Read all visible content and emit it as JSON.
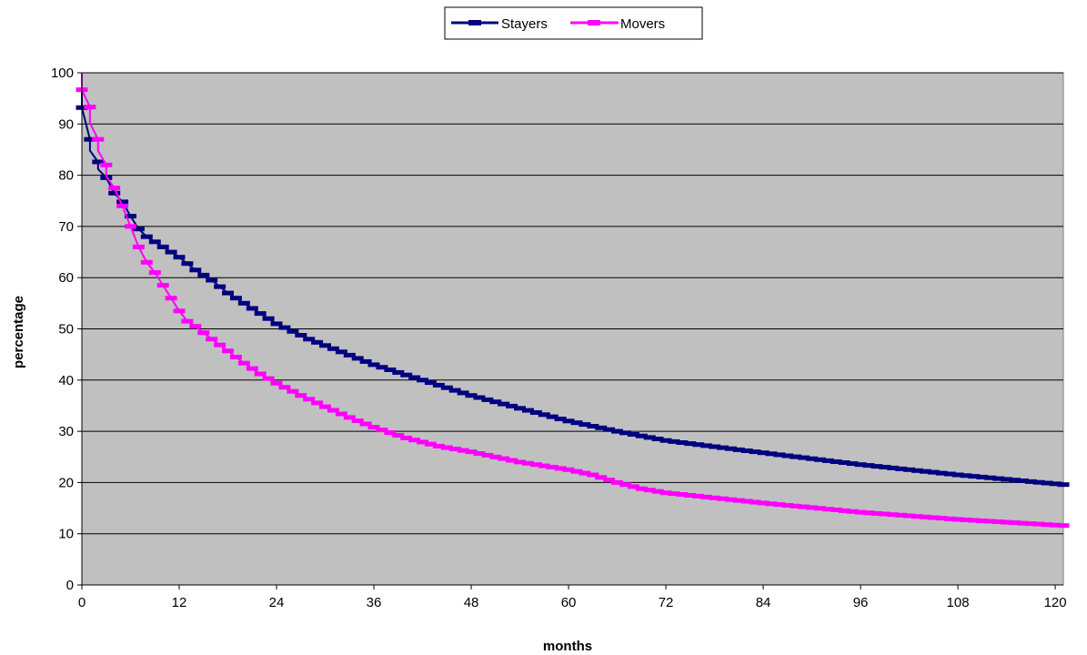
{
  "chart_data": {
    "type": "line",
    "title": "",
    "xlabel": "months",
    "ylabel": "percentage",
    "xlim": [
      0,
      121
    ],
    "ylim": [
      0,
      100
    ],
    "x_ticks": [
      "0",
      "12",
      "24",
      "36",
      "48",
      "60",
      "72",
      "84",
      "96",
      "108",
      "120"
    ],
    "y_ticks": [
      "0",
      "10",
      "20",
      "30",
      "40",
      "50",
      "60",
      "70",
      "80",
      "90",
      "100"
    ],
    "grid": "horizontal",
    "plot_background": "#C0C0C0",
    "legend_position": "top-center",
    "step_markers": true,
    "series": [
      {
        "name": "Stayers",
        "color": "#000080",
        "points": [
          [
            0,
            100
          ],
          [
            0,
            93.2
          ],
          [
            1,
            87
          ],
          [
            1,
            84.8
          ],
          [
            2,
            82.6
          ],
          [
            2,
            81.2
          ],
          [
            3,
            79.5
          ],
          [
            4,
            76.5
          ],
          [
            5,
            74.8
          ],
          [
            6,
            72
          ],
          [
            7,
            69.5
          ],
          [
            8,
            68
          ],
          [
            10,
            66
          ],
          [
            12,
            64
          ],
          [
            14,
            61.5
          ],
          [
            16,
            59.5
          ],
          [
            18,
            57
          ],
          [
            20,
            55
          ],
          [
            22,
            53
          ],
          [
            24,
            51
          ],
          [
            28,
            48
          ],
          [
            32,
            45.5
          ],
          [
            36,
            43
          ],
          [
            42,
            40
          ],
          [
            48,
            37
          ],
          [
            54,
            34.5
          ],
          [
            60,
            32
          ],
          [
            66,
            30
          ],
          [
            72,
            28.2
          ],
          [
            84,
            25.8
          ],
          [
            96,
            23.5
          ],
          [
            108,
            21.5
          ],
          [
            121,
            19.6
          ]
        ]
      },
      {
        "name": "Movers",
        "color": "#FF00FF",
        "points": [
          [
            0,
            100
          ],
          [
            0,
            96.7
          ],
          [
            1,
            93.3
          ],
          [
            1,
            90.2
          ],
          [
            2,
            87
          ],
          [
            2,
            84.8
          ],
          [
            3,
            82
          ],
          [
            3,
            79.8
          ],
          [
            4,
            77.5
          ],
          [
            5,
            74
          ],
          [
            6,
            70
          ],
          [
            7,
            66
          ],
          [
            8,
            63
          ],
          [
            9,
            61
          ],
          [
            10,
            58.5
          ],
          [
            11,
            56
          ],
          [
            12,
            53.5
          ],
          [
            13,
            51.5
          ],
          [
            14,
            50.5
          ],
          [
            16,
            48
          ],
          [
            18,
            45.7
          ],
          [
            20,
            43.3
          ],
          [
            22,
            41.2
          ],
          [
            24,
            39.4
          ],
          [
            27,
            37
          ],
          [
            30,
            34.8
          ],
          [
            33,
            32.7
          ],
          [
            36,
            30.8
          ],
          [
            40,
            28.7
          ],
          [
            44,
            27.1
          ],
          [
            48,
            26
          ],
          [
            54,
            24
          ],
          [
            60,
            22.5
          ],
          [
            63,
            21.5
          ],
          [
            66,
            20
          ],
          [
            69,
            18.8
          ],
          [
            72,
            18
          ],
          [
            78,
            17
          ],
          [
            84,
            16
          ],
          [
            96,
            14.2
          ],
          [
            108,
            12.8
          ],
          [
            121,
            11.6
          ]
        ]
      }
    ]
  }
}
